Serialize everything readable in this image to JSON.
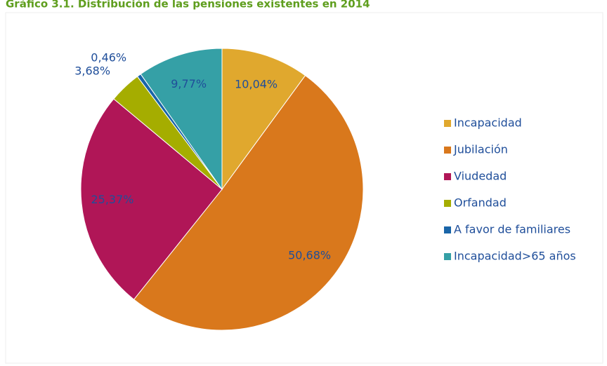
{
  "chart_data": {
    "type": "pie",
    "title": "Gráfico 3.1. Distribución de las pensiones existentes en 2014",
    "categories": [
      "Incapacidad",
      "Jubilación",
      "Viudedad",
      "Orfandad",
      "A favor de familiares",
      "Incapacidad>65 años"
    ],
    "values": [
      10.04,
      50.68,
      25.37,
      3.68,
      0.46,
      9.77
    ],
    "value_labels": [
      "10,04%",
      "50,68%",
      "25,37%",
      "3,68%",
      "0,46%",
      "9,77%"
    ],
    "colors": [
      "#e0a82e",
      "#d9781c",
      "#b01657",
      "#a5ad00",
      "#1a65a8",
      "#35a0a6"
    ],
    "legend": "right"
  }
}
